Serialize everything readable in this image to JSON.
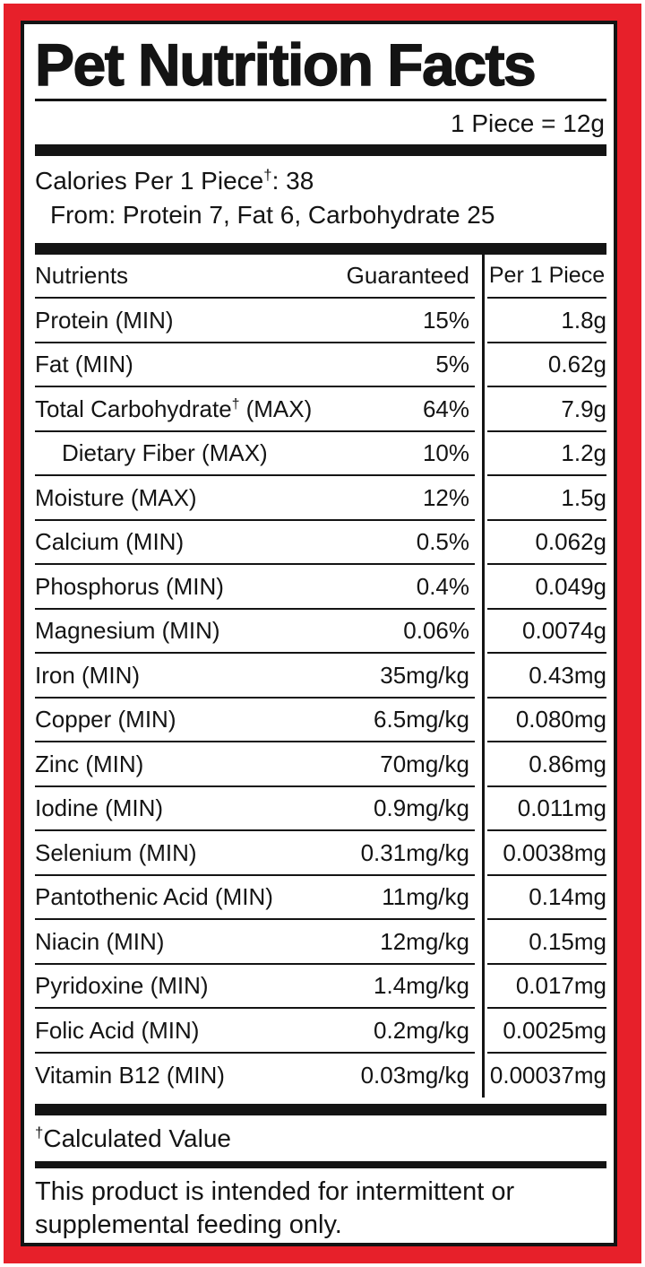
{
  "label": {
    "title": "Pet Nutrition Facts",
    "serving_size": "1 Piece = 12g",
    "calories": {
      "line1_pre": "Calories Per 1 Piece",
      "dagger": "†",
      "line1_post": ": 38",
      "line2": "From: Protein 7, Fat 6, Carbohydrate 25"
    },
    "table": {
      "headers": {
        "nutrients": "Nutrients",
        "guaranteed": "Guaranteed",
        "per_piece": "Per 1 Piece"
      },
      "rows": [
        {
          "name": "Protein (MIN)",
          "guaranteed": "15%",
          "per_piece": "1.8g",
          "indent": false
        },
        {
          "name": "Fat (MIN)",
          "guaranteed": "5%",
          "per_piece": "0.62g",
          "indent": false
        },
        {
          "name": "Total Carbohydrate† (MAX)",
          "guaranteed": "64%",
          "per_piece": "7.9g",
          "indent": false
        },
        {
          "name": "Dietary Fiber (MAX)",
          "guaranteed": "10%",
          "per_piece": "1.2g",
          "indent": true
        },
        {
          "name": "Moisture (MAX)",
          "guaranteed": "12%",
          "per_piece": "1.5g",
          "indent": false
        },
        {
          "name": "Calcium (MIN)",
          "guaranteed": "0.5%",
          "per_piece": "0.062g",
          "indent": false
        },
        {
          "name": "Phosphorus (MIN)",
          "guaranteed": "0.4%",
          "per_piece": "0.049g",
          "indent": false
        },
        {
          "name": "Magnesium (MIN)",
          "guaranteed": "0.06%",
          "per_piece": "0.0074g",
          "indent": false
        },
        {
          "name": "Iron (MIN)",
          "guaranteed": "35mg/kg",
          "per_piece": "0.43mg",
          "indent": false
        },
        {
          "name": "Copper (MIN)",
          "guaranteed": "6.5mg/kg",
          "per_piece": "0.080mg",
          "indent": false
        },
        {
          "name": "Zinc (MIN)",
          "guaranteed": "70mg/kg",
          "per_piece": "0.86mg",
          "indent": false
        },
        {
          "name": "Iodine (MIN)",
          "guaranteed": "0.9mg/kg",
          "per_piece": "0.011mg",
          "indent": false
        },
        {
          "name": "Selenium (MIN)",
          "guaranteed": "0.31mg/kg",
          "per_piece": "0.0038mg",
          "indent": false
        },
        {
          "name": "Pantothenic Acid (MIN)",
          "guaranteed": "11mg/kg",
          "per_piece": "0.14mg",
          "indent": false
        },
        {
          "name": "Niacin (MIN)",
          "guaranteed": "12mg/kg",
          "per_piece": "0.15mg",
          "indent": false
        },
        {
          "name": "Pyridoxine (MIN)",
          "guaranteed": "1.4mg/kg",
          "per_piece": "0.017mg",
          "indent": false
        },
        {
          "name": "Folic Acid (MIN)",
          "guaranteed": "0.2mg/kg",
          "per_piece": "0.0025mg",
          "indent": false
        },
        {
          "name": "Vitamin B12 (MIN)",
          "guaranteed": "0.03mg/kg",
          "per_piece": "0.00037mg",
          "indent": false
        }
      ]
    },
    "footnote": {
      "dagger": "†",
      "text": "Calculated Value"
    },
    "disclaimer": "This product is intended for intermittent or supplemental feeding only."
  },
  "colors": {
    "frame_red": "#e7202a",
    "ink": "#141414",
    "background": "#ffffff"
  }
}
